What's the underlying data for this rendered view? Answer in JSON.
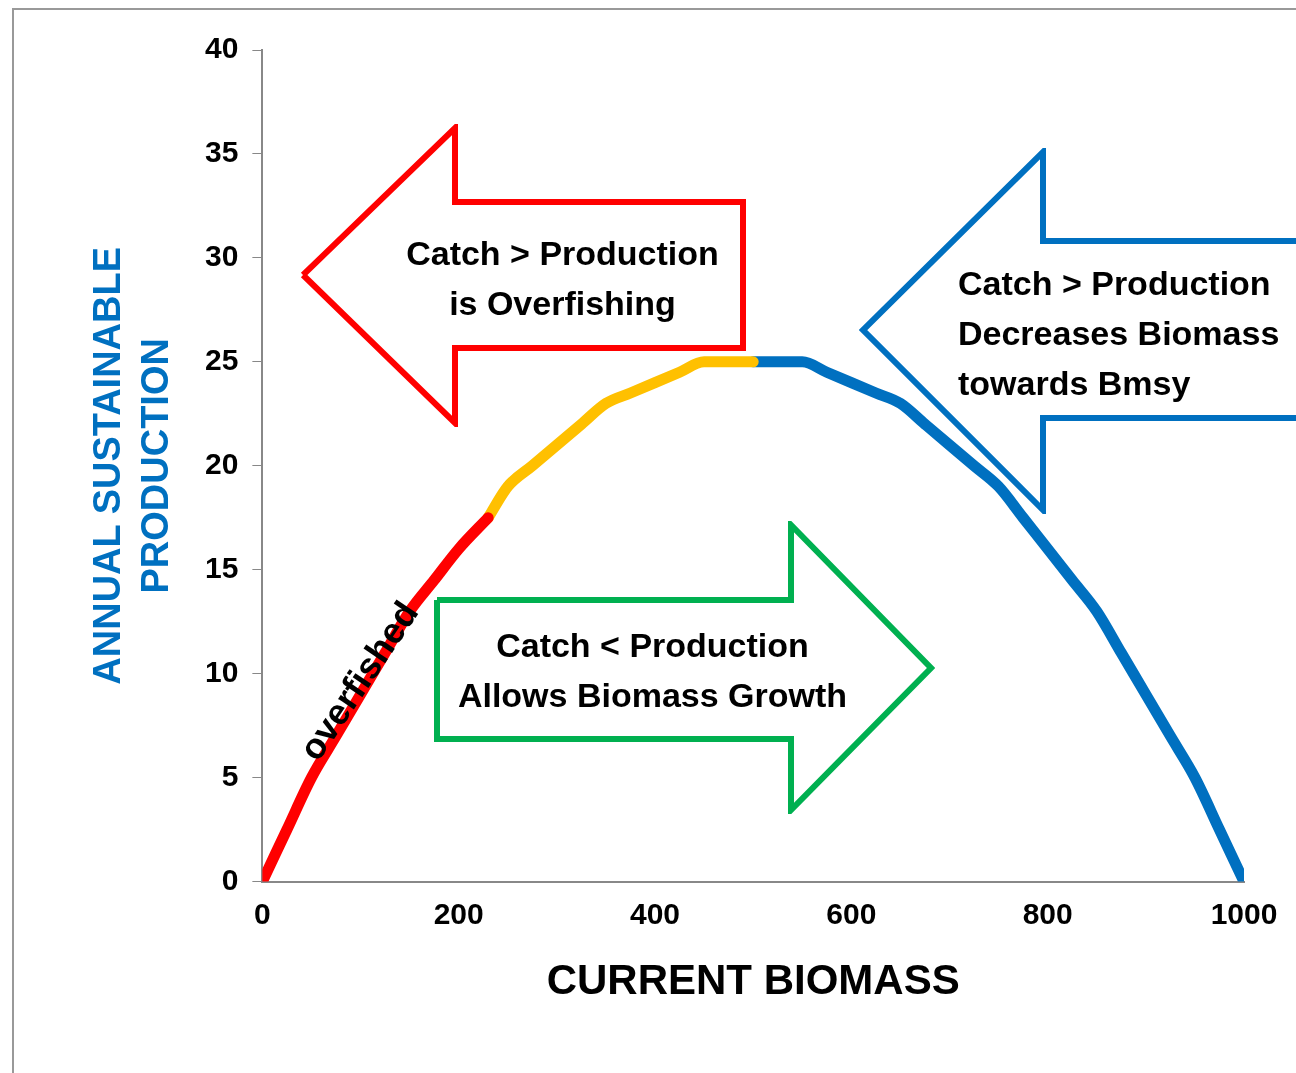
{
  "chart_data": {
    "type": "line",
    "xlabel": "CURRENT BIOMASS",
    "ylabel": "ANNUAL SUSTAINABLE\nPRODUCTION",
    "xlim": [
      0,
      1000
    ],
    "ylim": [
      0,
      40
    ],
    "xticks": [
      0,
      200,
      400,
      600,
      800,
      1000
    ],
    "yticks": [
      0,
      5,
      10,
      15,
      20,
      25,
      30,
      35,
      40
    ],
    "grid": false,
    "legend": false,
    "marker": "none",
    "line_style": "solid",
    "series": [
      {
        "color": "#ff0000",
        "x": [
          0,
          25,
          50,
          75,
          100,
          125,
          150,
          175,
          200,
          230
        ],
        "values": [
          0,
          2.5,
          5,
          7,
          9,
          11,
          13,
          14.5,
          16,
          17.5
        ]
      },
      {
        "color": "#ffc000",
        "x": [
          230,
          250,
          275,
          300,
          325,
          350,
          375,
          400,
          425,
          450,
          475,
          500
        ],
        "values": [
          17.5,
          19,
          20,
          21,
          22,
          23,
          23.5,
          24,
          24.5,
          25,
          25,
          25
        ]
      },
      {
        "color": "#0070c0",
        "x": [
          500,
          525,
          550,
          575,
          600,
          625,
          650,
          675,
          700,
          725,
          750,
          775,
          800,
          825,
          850,
          875,
          900,
          925,
          950,
          975,
          1000
        ],
        "values": [
          25,
          25,
          25,
          24.5,
          24,
          23.5,
          23,
          22,
          21,
          20,
          19,
          17.5,
          16,
          14.5,
          13,
          11,
          9,
          7,
          5,
          2.5,
          0
        ]
      }
    ],
    "annotations": [
      "overfished",
      "Catch > Production\nis Overfishing",
      "Catch > Production\nDecreases Biomass\ntowards Bmsy",
      "Catch < Production\nAllows Biomass Growth"
    ]
  }
}
